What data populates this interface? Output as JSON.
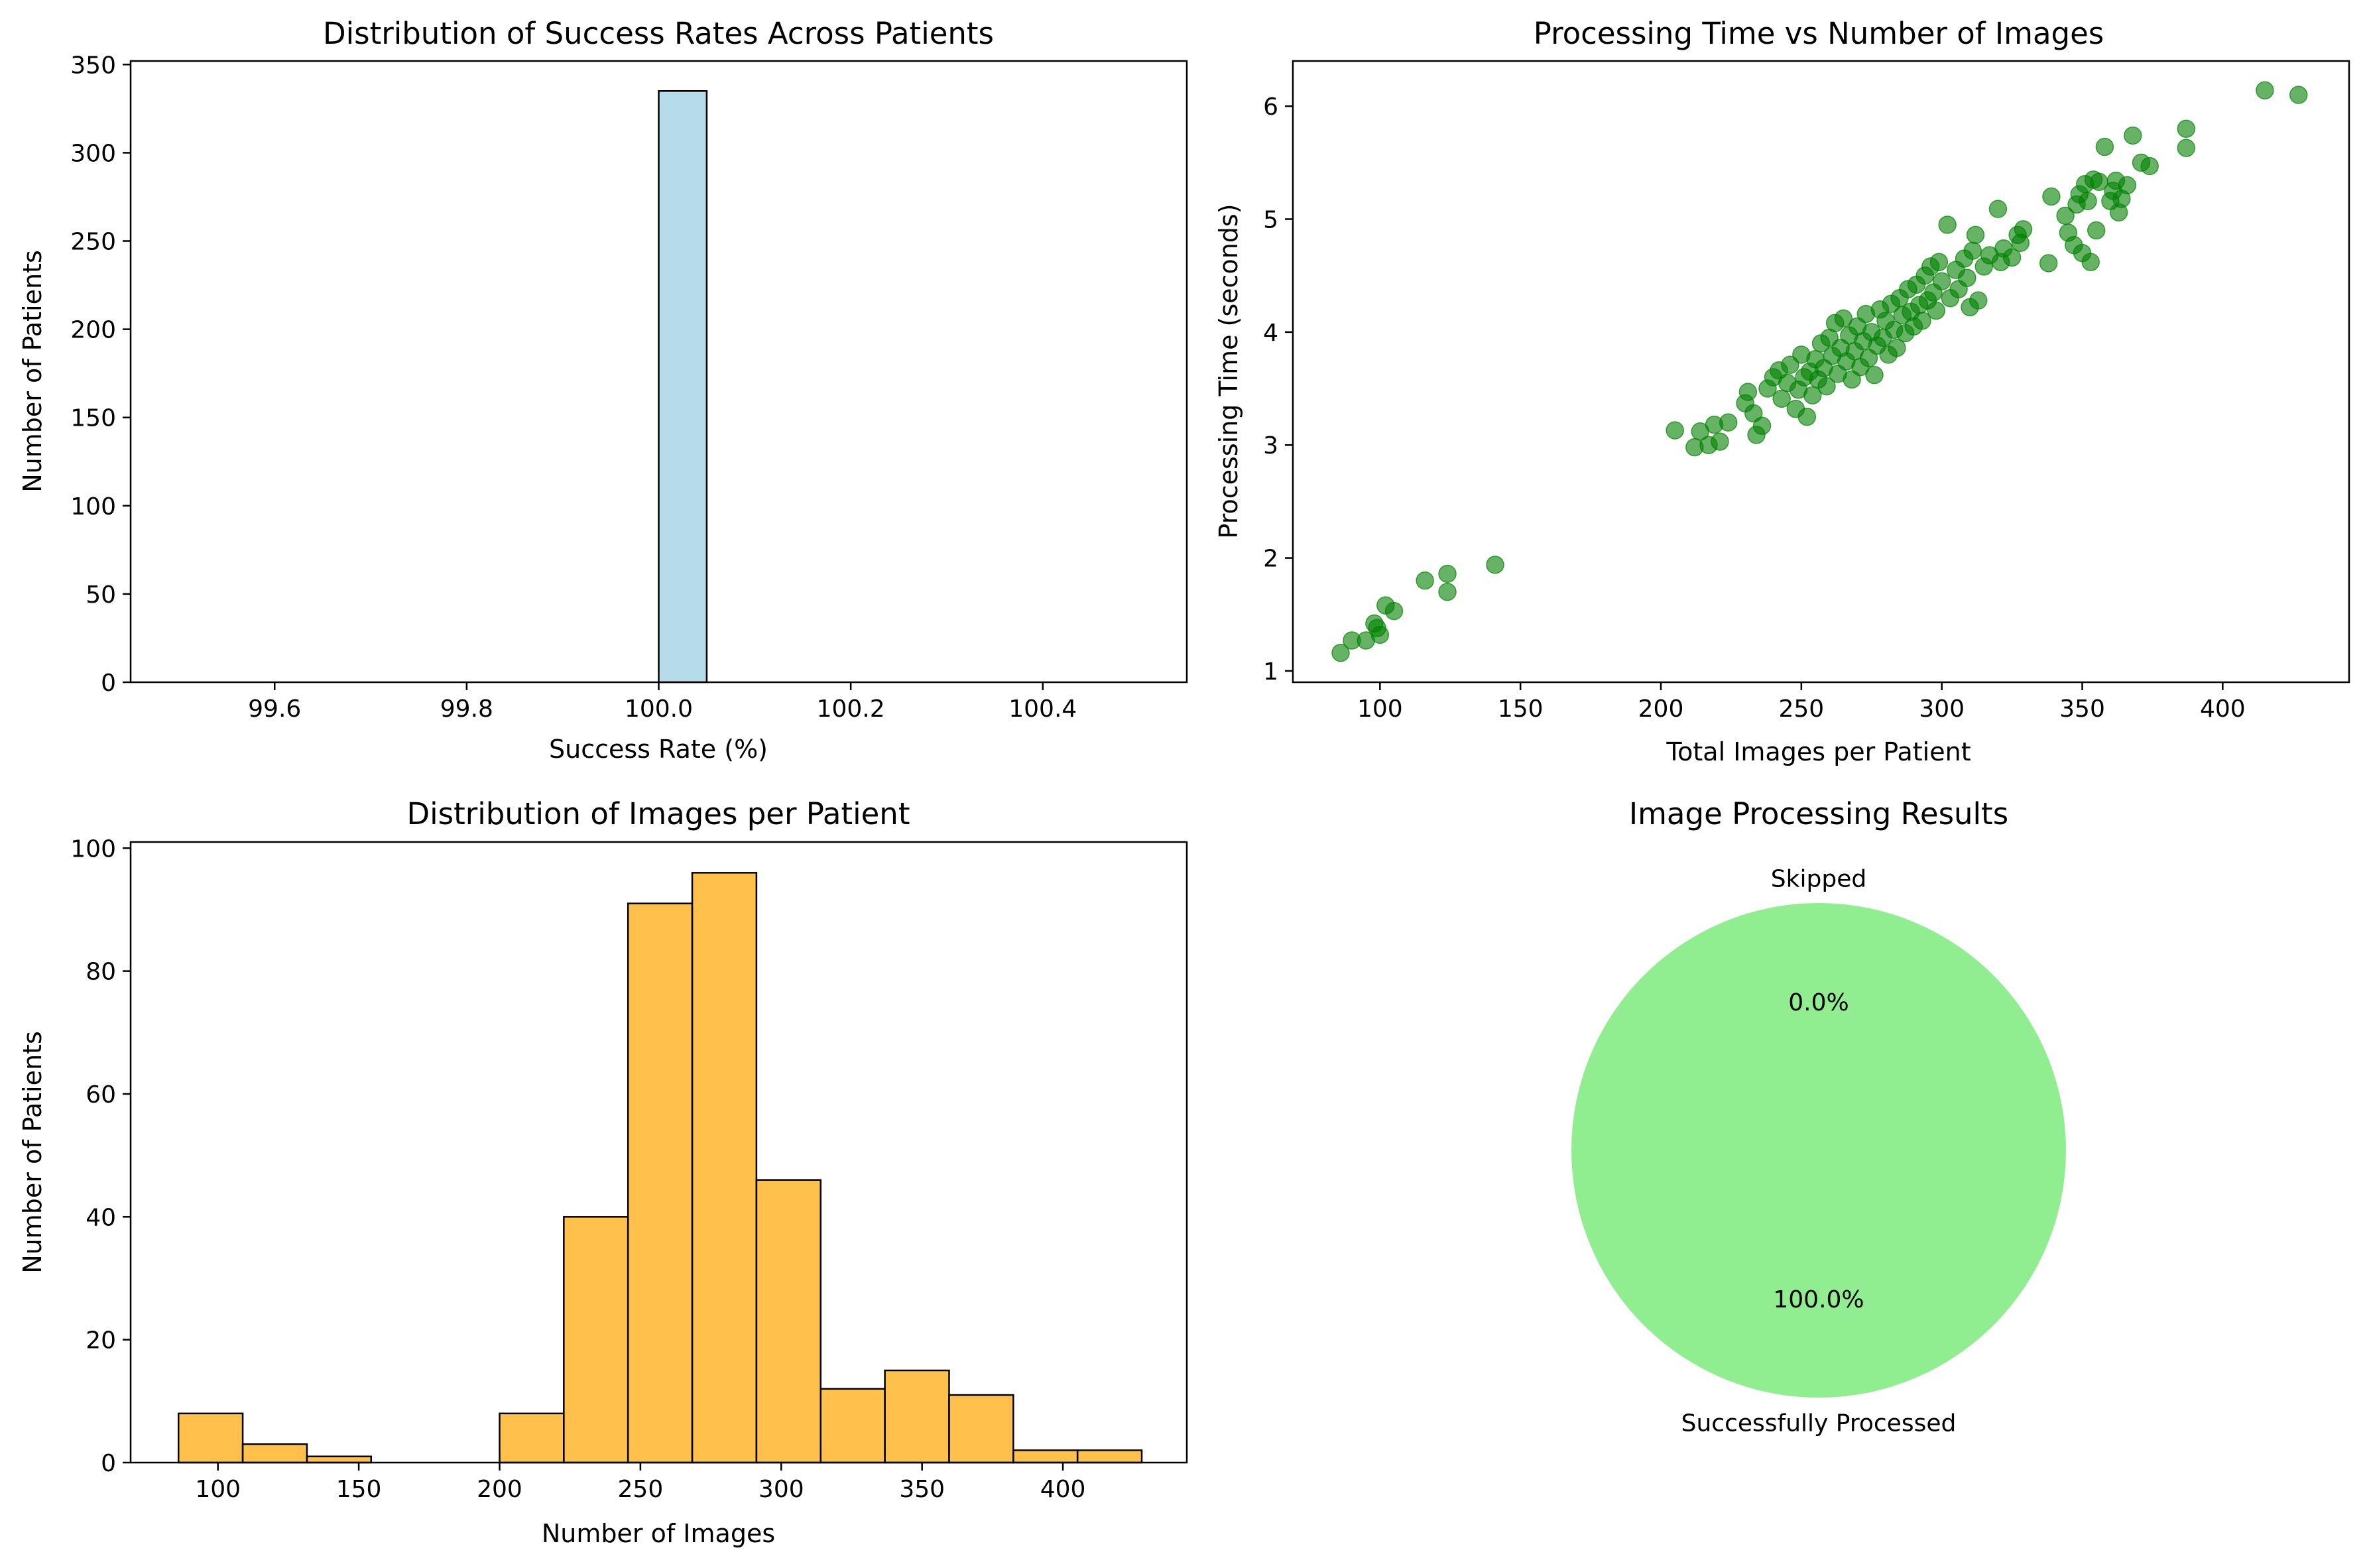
{
  "chart_data": [
    {
      "type": "bar",
      "title": "Distribution of Success Rates Across Patients",
      "xlabel": "Success Rate (%)",
      "ylabel": "Number of Patients",
      "xlim": [
        99.45,
        100.55
      ],
      "ylim": [
        0,
        352
      ],
      "xticks": [
        99.6,
        99.8,
        100.0,
        100.2,
        100.4
      ],
      "xtick_labels": [
        "99.6",
        "99.8",
        "100.0",
        "100.2",
        "100.4"
      ],
      "yticks": [
        0,
        50,
        100,
        150,
        200,
        250,
        300,
        350
      ],
      "bins": [
        {
          "x0": 99.5,
          "x1": 100.0,
          "count": 0
        },
        {
          "x0": 100.0,
          "x1": 100.05,
          "count": 335
        },
        {
          "x0": 100.05,
          "x1": 100.5,
          "count": 0
        }
      ],
      "color": "#add8e6"
    },
    {
      "type": "scatter",
      "title": "Processing Time vs Number of Images",
      "xlabel": "Total Images per Patient",
      "ylabel": "Processing Time (seconds)",
      "xlim": [
        69,
        445
      ],
      "ylim": [
        0.9,
        6.4
      ],
      "xticks": [
        100,
        150,
        200,
        250,
        300,
        350,
        400
      ],
      "yticks": [
        1,
        2,
        3,
        4,
        5,
        6
      ],
      "color": "#008000",
      "points": [
        [
          86,
          1.16
        ],
        [
          90,
          1.27
        ],
        [
          95,
          1.27
        ],
        [
          98,
          1.42
        ],
        [
          99,
          1.38
        ],
        [
          100,
          1.32
        ],
        [
          102,
          1.58
        ],
        [
          105,
          1.53
        ],
        [
          116,
          1.8
        ],
        [
          124,
          1.86
        ],
        [
          124,
          1.7
        ],
        [
          141,
          1.94
        ],
        [
          205,
          3.13
        ],
        [
          212,
          2.98
        ],
        [
          214,
          3.12
        ],
        [
          217,
          3.0
        ],
        [
          219,
          3.18
        ],
        [
          221,
          3.03
        ],
        [
          224,
          3.2
        ],
        [
          230,
          3.37
        ],
        [
          231,
          3.47
        ],
        [
          233,
          3.28
        ],
        [
          234,
          3.09
        ],
        [
          236,
          3.17
        ],
        [
          238,
          3.5
        ],
        [
          240,
          3.6
        ],
        [
          242,
          3.66
        ],
        [
          243,
          3.41
        ],
        [
          245,
          3.55
        ],
        [
          246,
          3.71
        ],
        [
          248,
          3.32
        ],
        [
          249,
          3.49
        ],
        [
          250,
          3.8
        ],
        [
          251,
          3.6
        ],
        [
          252,
          3.25
        ],
        [
          253,
          3.65
        ],
        [
          254,
          3.44
        ],
        [
          255,
          3.76
        ],
        [
          256,
          3.58
        ],
        [
          257,
          3.9
        ],
        [
          258,
          3.68
        ],
        [
          259,
          3.52
        ],
        [
          260,
          3.95
        ],
        [
          261,
          3.79
        ],
        [
          262,
          4.08
        ],
        [
          263,
          3.63
        ],
        [
          264,
          3.86
        ],
        [
          265,
          4.12
        ],
        [
          266,
          3.74
        ],
        [
          267,
          3.97
        ],
        [
          268,
          3.58
        ],
        [
          269,
          3.83
        ],
        [
          270,
          4.05
        ],
        [
          271,
          3.69
        ],
        [
          272,
          3.92
        ],
        [
          273,
          4.16
        ],
        [
          274,
          3.77
        ],
        [
          275,
          4.0
        ],
        [
          276,
          3.62
        ],
        [
          277,
          3.88
        ],
        [
          278,
          4.2
        ],
        [
          279,
          3.95
        ],
        [
          280,
          4.1
        ],
        [
          281,
          3.8
        ],
        [
          282,
          4.25
        ],
        [
          283,
          4.02
        ],
        [
          284,
          3.86
        ],
        [
          285,
          4.3
        ],
        [
          286,
          4.15
        ],
        [
          287,
          3.99
        ],
        [
          288,
          4.38
        ],
        [
          289,
          4.18
        ],
        [
          290,
          4.05
        ],
        [
          291,
          4.42
        ],
        [
          292,
          4.24
        ],
        [
          293,
          4.1
        ],
        [
          294,
          4.5
        ],
        [
          295,
          4.28
        ],
        [
          296,
          4.58
        ],
        [
          297,
          4.35
        ],
        [
          298,
          4.19
        ],
        [
          299,
          4.62
        ],
        [
          300,
          4.45
        ],
        [
          302,
          4.95
        ],
        [
          303,
          4.3
        ],
        [
          305,
          4.55
        ],
        [
          306,
          4.38
        ],
        [
          308,
          4.65
        ],
        [
          309,
          4.48
        ],
        [
          310,
          4.22
        ],
        [
          311,
          4.72
        ],
        [
          312,
          4.86
        ],
        [
          313,
          4.28
        ],
        [
          315,
          4.58
        ],
        [
          317,
          4.68
        ],
        [
          320,
          5.09
        ],
        [
          321,
          4.62
        ],
        [
          322,
          4.74
        ],
        [
          325,
          4.66
        ],
        [
          327,
          4.86
        ],
        [
          328,
          4.79
        ],
        [
          329,
          4.91
        ],
        [
          338,
          4.61
        ],
        [
          339,
          5.2
        ],
        [
          344,
          5.03
        ],
        [
          345,
          4.88
        ],
        [
          347,
          4.77
        ],
        [
          348,
          5.13
        ],
        [
          349,
          5.22
        ],
        [
          350,
          4.7
        ],
        [
          351,
          5.31
        ],
        [
          352,
          5.16
        ],
        [
          353,
          4.62
        ],
        [
          354,
          5.35
        ],
        [
          355,
          4.9
        ],
        [
          356,
          5.33
        ],
        [
          358,
          5.64
        ],
        [
          360,
          5.16
        ],
        [
          361,
          5.25
        ],
        [
          362,
          5.34
        ],
        [
          363,
          5.06
        ],
        [
          364,
          5.18
        ],
        [
          366,
          5.3
        ],
        [
          368,
          5.74
        ],
        [
          371,
          5.5
        ],
        [
          374,
          5.47
        ],
        [
          387,
          5.8
        ],
        [
          387,
          5.63
        ],
        [
          415,
          6.14
        ],
        [
          427,
          6.1
        ]
      ]
    },
    {
      "type": "bar",
      "title": "Distribution of Images per Patient",
      "xlabel": "Number of Images",
      "ylabel": "Number of Patients",
      "xlim": [
        69,
        444
      ],
      "ylim": [
        0,
        101
      ],
      "xticks": [
        100,
        150,
        200,
        250,
        300,
        350,
        400
      ],
      "yticks": [
        0,
        20,
        40,
        60,
        80,
        100
      ],
      "bin_edges": [
        86.0,
        108.8,
        131.6,
        154.4,
        177.2,
        200.0,
        222.8,
        245.6,
        268.4,
        291.2,
        314.0,
        336.8,
        359.6,
        382.4,
        405.2,
        428.0
      ],
      "values": [
        8,
        3,
        1,
        0,
        0,
        8,
        40,
        91,
        96,
        46,
        12,
        15,
        11,
        2,
        2
      ],
      "color": "#ffa500"
    },
    {
      "type": "pie",
      "title": "Image Processing Results",
      "labels": [
        "Successfully Processed",
        "Skipped"
      ],
      "values": [
        100.0,
        0.0
      ],
      "autopct": [
        "100.0%",
        "0.0%"
      ],
      "colors": [
        "#90ee90",
        "#f08080"
      ]
    }
  ]
}
